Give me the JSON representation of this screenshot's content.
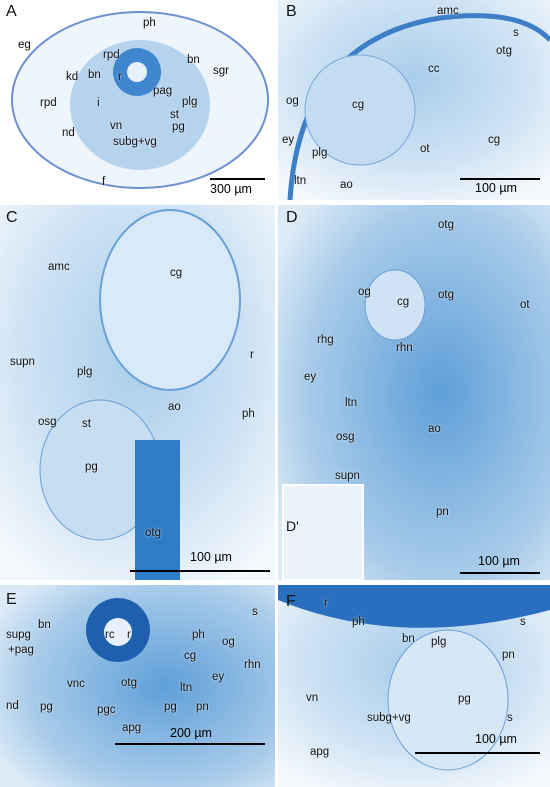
{
  "panels": [
    {
      "letter": "A",
      "labels": [
        "eg",
        "rpd",
        "ph",
        "bn",
        "bn",
        "sgr",
        "kd",
        "r",
        "rpd",
        "i",
        "pag",
        "plg",
        "st",
        "nd",
        "vn",
        "pg",
        "subg+vg",
        "f"
      ],
      "scale_bar": "300 µm"
    },
    {
      "letter": "B",
      "labels": [
        "amc",
        "s",
        "cc",
        "otg",
        "og",
        "cg",
        "cg",
        "ey",
        "plg",
        "ot",
        "ltn",
        "ao"
      ],
      "scale_bar": "100 µm"
    },
    {
      "letter": "C",
      "labels": [
        "amc",
        "cg",
        "r",
        "supn",
        "plg",
        "ao",
        "osg",
        "st",
        "ph",
        "pg",
        "otg"
      ],
      "scale_bar": "100 µm"
    },
    {
      "letter": "D",
      "labels": [
        "otg",
        "og",
        "cg",
        "otg",
        "ot",
        "rhg",
        "rhn",
        "ey",
        "ltn",
        "ao",
        "osg",
        "supn",
        "pn"
      ],
      "inset_label": "D'",
      "scale_bar": "100 µm"
    },
    {
      "letter": "E",
      "labels": [
        "s",
        "bn",
        "supg",
        "+pag",
        "rc",
        "r",
        "ph",
        "cg",
        "og",
        "rhn",
        "ey",
        "vnc",
        "otg",
        "ltn",
        "pn",
        "nd",
        "pg",
        "pg",
        "pgc",
        "apg"
      ],
      "scale_bar": "200 µm"
    },
    {
      "letter": "F",
      "labels": [
        "r",
        "ph",
        "bn",
        "plg",
        "s",
        "pn",
        "vn",
        "pg",
        "s",
        "subg+vg",
        "apg"
      ],
      "scale_bar": "100 µm"
    }
  ]
}
